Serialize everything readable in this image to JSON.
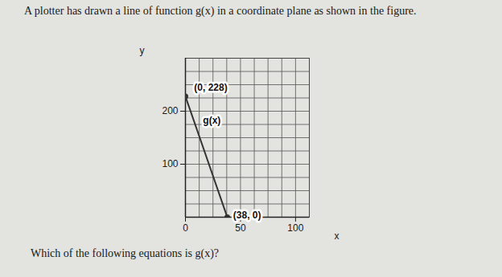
{
  "chart_data": {
    "type": "line",
    "title": "A plotter has drawn a line of function g(x) in a coordinate plane as shown in the figure.",
    "caption": "Which of the following equations is g(x)?",
    "xlabel": "x",
    "ylabel": "y",
    "x": [
      0,
      38
    ],
    "series": [
      {
        "name": "g(x)",
        "color": "#333333",
        "values": [
          228,
          0
        ],
        "marker": "circle"
      }
    ],
    "xlim": [
      0,
      112.5
    ],
    "xticks": [
      0,
      50,
      100
    ],
    "ylim": [
      0,
      300
    ],
    "yticks": [
      100,
      200
    ],
    "grid": true,
    "annotations": [
      {
        "text": "(0, 228)",
        "x": 23,
        "y": 244
      },
      {
        "text": "g(x)",
        "x": 24,
        "y": 182
      },
      {
        "text": "(38, 0)",
        "x": 56,
        "y": 4
      }
    ]
  }
}
